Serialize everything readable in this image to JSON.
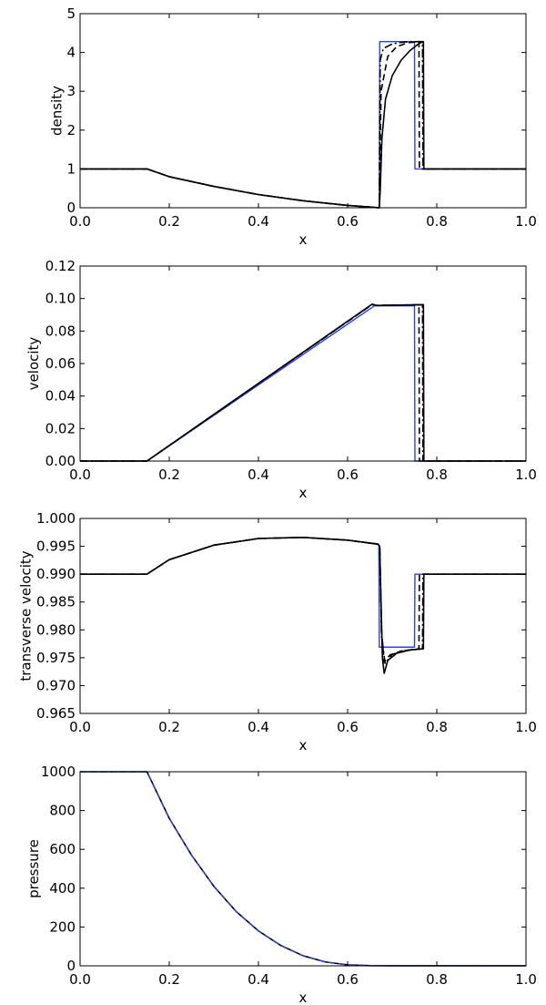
{
  "chart_data": [
    {
      "type": "line",
      "xlabel": "x",
      "ylabel": "density",
      "xlim": [
        0.0,
        1.0
      ],
      "ylim": [
        0,
        5
      ],
      "xticks": [
        "0.0",
        "0.2",
        "0.4",
        "0.6",
        "0.8",
        "1.0"
      ],
      "yticks": [
        "0",
        "1",
        "2",
        "3",
        "4",
        "5"
      ],
      "series": [
        {
          "color": "#2a46d8",
          "dash": "solid",
          "x": [
            0.0,
            0.15,
            0.2,
            0.3,
            0.4,
            0.5,
            0.6,
            0.671,
            0.672,
            0.75,
            0.751,
            1.0
          ],
          "y": [
            1.0,
            1.0,
            0.8,
            0.55,
            0.34,
            0.18,
            0.06,
            0.0,
            4.28,
            4.28,
            1.0,
            1.0
          ]
        },
        {
          "color": "#000000",
          "dash": "solid",
          "x": [
            0.0,
            0.15,
            0.2,
            0.3,
            0.4,
            0.5,
            0.6,
            0.65,
            0.671,
            0.673,
            0.677,
            0.685,
            0.7,
            0.72,
            0.74,
            0.76,
            0.77,
            0.771,
            1.0
          ],
          "y": [
            1.0,
            1.0,
            0.8,
            0.55,
            0.34,
            0.18,
            0.06,
            0.02,
            0.0,
            0.4,
            1.8,
            2.8,
            3.4,
            3.8,
            4.05,
            4.23,
            4.28,
            1.0,
            1.0
          ]
        },
        {
          "color": "#000000",
          "dash": "dashed",
          "x": [
            0.0,
            0.15,
            0.2,
            0.3,
            0.4,
            0.5,
            0.6,
            0.671,
            0.675,
            0.69,
            0.71,
            0.735,
            0.76,
            0.761,
            1.0
          ],
          "y": [
            1.0,
            1.0,
            0.8,
            0.55,
            0.34,
            0.18,
            0.06,
            0.0,
            3.0,
            3.9,
            4.15,
            4.25,
            4.28,
            1.0,
            1.0
          ]
        },
        {
          "color": "#000000",
          "dash": "dashdot",
          "x": [
            0.0,
            0.15,
            0.2,
            0.3,
            0.4,
            0.5,
            0.6,
            0.671,
            0.673,
            0.68,
            0.7,
            0.72,
            0.74,
            0.768,
            0.769,
            1.0
          ],
          "y": [
            1.0,
            1.0,
            0.8,
            0.55,
            0.34,
            0.18,
            0.06,
            0.0,
            3.8,
            4.1,
            4.22,
            4.26,
            4.28,
            4.28,
            1.0,
            1.0
          ]
        }
      ]
    },
    {
      "type": "line",
      "xlabel": "x",
      "ylabel": "velocity",
      "xlim": [
        0.0,
        1.0
      ],
      "ylim": [
        0.0,
        0.12
      ],
      "xticks": [
        "0.0",
        "0.2",
        "0.4",
        "0.6",
        "0.8",
        "1.0"
      ],
      "yticks": [
        "0.00",
        "0.02",
        "0.04",
        "0.06",
        "0.08",
        "0.10",
        "0.12"
      ],
      "series": [
        {
          "color": "#2a46d8",
          "dash": "solid",
          "x": [
            0.0,
            0.15,
            0.66,
            0.75,
            0.751,
            1.0
          ],
          "y": [
            0.0,
            0.0,
            0.0955,
            0.0955,
            0.0,
            0.0
          ]
        },
        {
          "color": "#000000",
          "dash": "solid",
          "x": [
            0.0,
            0.15,
            0.655,
            0.665,
            0.77,
            0.771,
            1.0
          ],
          "y": [
            0.0,
            0.0,
            0.0966,
            0.0957,
            0.0962,
            0.0,
            0.0
          ]
        },
        {
          "color": "#000000",
          "dash": "dashed",
          "x": [
            0.0,
            0.15,
            0.655,
            0.665,
            0.76,
            0.761,
            1.0
          ],
          "y": [
            0.0,
            0.0,
            0.0963,
            0.0958,
            0.0962,
            0.0,
            0.0
          ]
        },
        {
          "color": "#000000",
          "dash": "dashdot",
          "x": [
            0.0,
            0.15,
            0.655,
            0.665,
            0.768,
            0.769,
            1.0
          ],
          "y": [
            0.0,
            0.0,
            0.0964,
            0.0958,
            0.0962,
            0.0,
            0.0
          ]
        }
      ]
    },
    {
      "type": "line",
      "xlabel": "x",
      "ylabel": "transverse velocity",
      "xlim": [
        0.0,
        1.0
      ],
      "ylim": [
        0.965,
        1.0
      ],
      "xticks": [
        "0.0",
        "0.2",
        "0.4",
        "0.6",
        "0.8",
        "1.0"
      ],
      "yticks": [
        "0.965",
        "0.970",
        "0.975",
        "0.980",
        "0.985",
        "0.990",
        "0.995",
        "1.000"
      ],
      "series": [
        {
          "color": "#2a46d8",
          "dash": "solid",
          "x": [
            0.0,
            0.15,
            0.2,
            0.3,
            0.4,
            0.5,
            0.6,
            0.67,
            0.671,
            0.75,
            0.751,
            1.0
          ],
          "y": [
            0.99,
            0.99,
            0.9926,
            0.9952,
            0.9964,
            0.9966,
            0.9961,
            0.9953,
            0.9769,
            0.9769,
            0.99,
            0.99
          ]
        },
        {
          "color": "#000000",
          "dash": "solid",
          "x": [
            0.0,
            0.15,
            0.2,
            0.3,
            0.4,
            0.5,
            0.6,
            0.668,
            0.672,
            0.675,
            0.678,
            0.682,
            0.69,
            0.71,
            0.74,
            0.77,
            0.771,
            1.0
          ],
          "y": [
            0.99,
            0.99,
            0.9926,
            0.9952,
            0.9964,
            0.9966,
            0.9961,
            0.9954,
            0.995,
            0.985,
            0.975,
            0.9722,
            0.9745,
            0.9758,
            0.9764,
            0.9766,
            0.99,
            0.99
          ]
        },
        {
          "color": "#000000",
          "dash": "dashed",
          "x": [
            0.0,
            0.15,
            0.2,
            0.3,
            0.4,
            0.5,
            0.6,
            0.668,
            0.672,
            0.676,
            0.682,
            0.695,
            0.72,
            0.76,
            0.761,
            1.0
          ],
          "y": [
            0.99,
            0.99,
            0.9926,
            0.9952,
            0.9964,
            0.9966,
            0.9961,
            0.9954,
            0.995,
            0.98,
            0.9742,
            0.9755,
            0.9762,
            0.9766,
            0.99,
            0.99
          ]
        },
        {
          "color": "#000000",
          "dash": "dashdot",
          "x": [
            0.0,
            0.15,
            0.2,
            0.3,
            0.4,
            0.5,
            0.6,
            0.668,
            0.672,
            0.676,
            0.684,
            0.7,
            0.73,
            0.768,
            0.769,
            1.0
          ],
          "y": [
            0.99,
            0.99,
            0.9926,
            0.9952,
            0.9964,
            0.9966,
            0.9961,
            0.9954,
            0.995,
            0.979,
            0.974,
            0.9756,
            0.9763,
            0.9766,
            0.99,
            0.99
          ]
        }
      ]
    },
    {
      "type": "line",
      "xlabel": "x",
      "ylabel": "pressure",
      "xlim": [
        0.0,
        1.0
      ],
      "ylim": [
        0,
        1000
      ],
      "xticks": [
        "0.0",
        "0.2",
        "0.4",
        "0.6",
        "0.8",
        "1.0"
      ],
      "yticks": [
        "0",
        "200",
        "400",
        "600",
        "800",
        "1000"
      ],
      "series": [
        {
          "color": "#000000",
          "dash": "solid",
          "x": [
            0.0,
            0.15,
            0.2,
            0.25,
            0.3,
            0.35,
            0.4,
            0.45,
            0.5,
            0.55,
            0.6,
            0.65,
            0.7,
            1.0
          ],
          "y": [
            1000,
            1000,
            760,
            570,
            410,
            280,
            180,
            105,
            52,
            20,
            5,
            1,
            0.5,
            0.5
          ]
        },
        {
          "color": "#2a46d8",
          "dash": "dashed",
          "x": [
            0.0,
            0.15,
            0.2,
            0.25,
            0.3,
            0.35,
            0.4,
            0.45,
            0.5,
            0.55,
            0.6,
            0.65,
            0.7,
            1.0
          ],
          "y": [
            1000,
            1000,
            760,
            570,
            410,
            280,
            180,
            105,
            52,
            20,
            5,
            1,
            0.5,
            0.5
          ]
        }
      ]
    }
  ]
}
